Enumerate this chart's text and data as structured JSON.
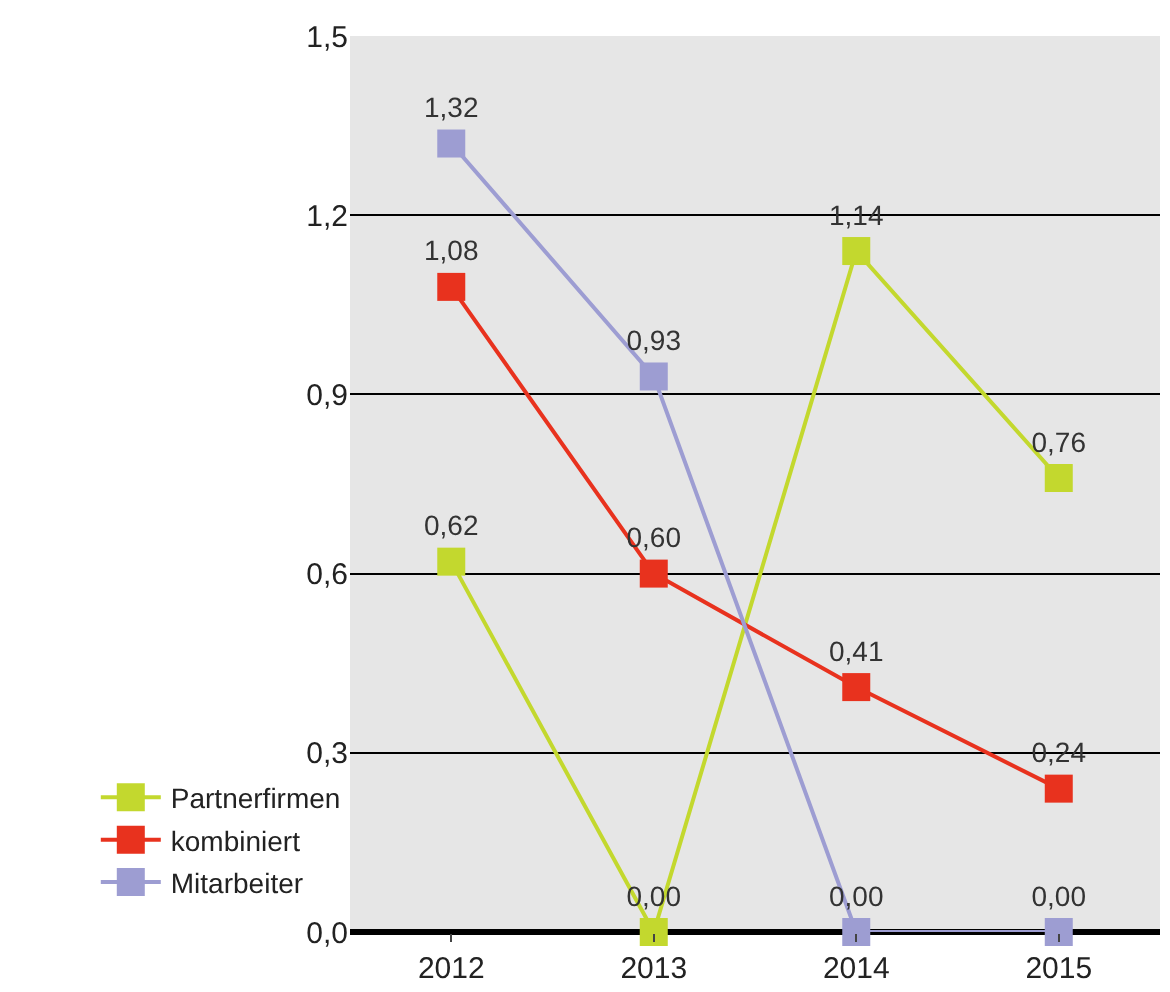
{
  "chart_data": {
    "type": "line",
    "categories": [
      "2012",
      "2013",
      "2014",
      "2015"
    ],
    "series": [
      {
        "name": "Partnerfirmen",
        "color": "#c3d82e",
        "values": [
          0.62,
          0.0,
          1.14,
          0.76
        ],
        "value_labels": [
          "0,62",
          "0,00",
          "1,14",
          "0,76"
        ]
      },
      {
        "name": "kombiniert",
        "color": "#e8321e",
        "values": [
          1.08,
          0.6,
          0.41,
          0.24
        ],
        "value_labels": [
          "1,08",
          "0,60",
          "0,41",
          "0,24"
        ]
      },
      {
        "name": "Mitarbeiter",
        "color": "#9d9dd2",
        "values": [
          1.32,
          0.93,
          0.0,
          0.0
        ],
        "value_labels": [
          "1,32",
          "0,93",
          "0,00",
          "0,00"
        ]
      }
    ],
    "ylim": [
      0,
      1.5
    ],
    "yticks": [
      {
        "value": 0,
        "label": "0,0"
      },
      {
        "value": 0.3,
        "label": "0,3"
      },
      {
        "value": 0.6,
        "label": "0,6"
      },
      {
        "value": 0.9,
        "label": "0,9"
      },
      {
        "value": 1.2,
        "label": "1,2"
      },
      {
        "value": 1.5,
        "label": "1,5"
      }
    ],
    "grid": "y",
    "legend": "left",
    "marker": "square",
    "line_style": "solid"
  }
}
